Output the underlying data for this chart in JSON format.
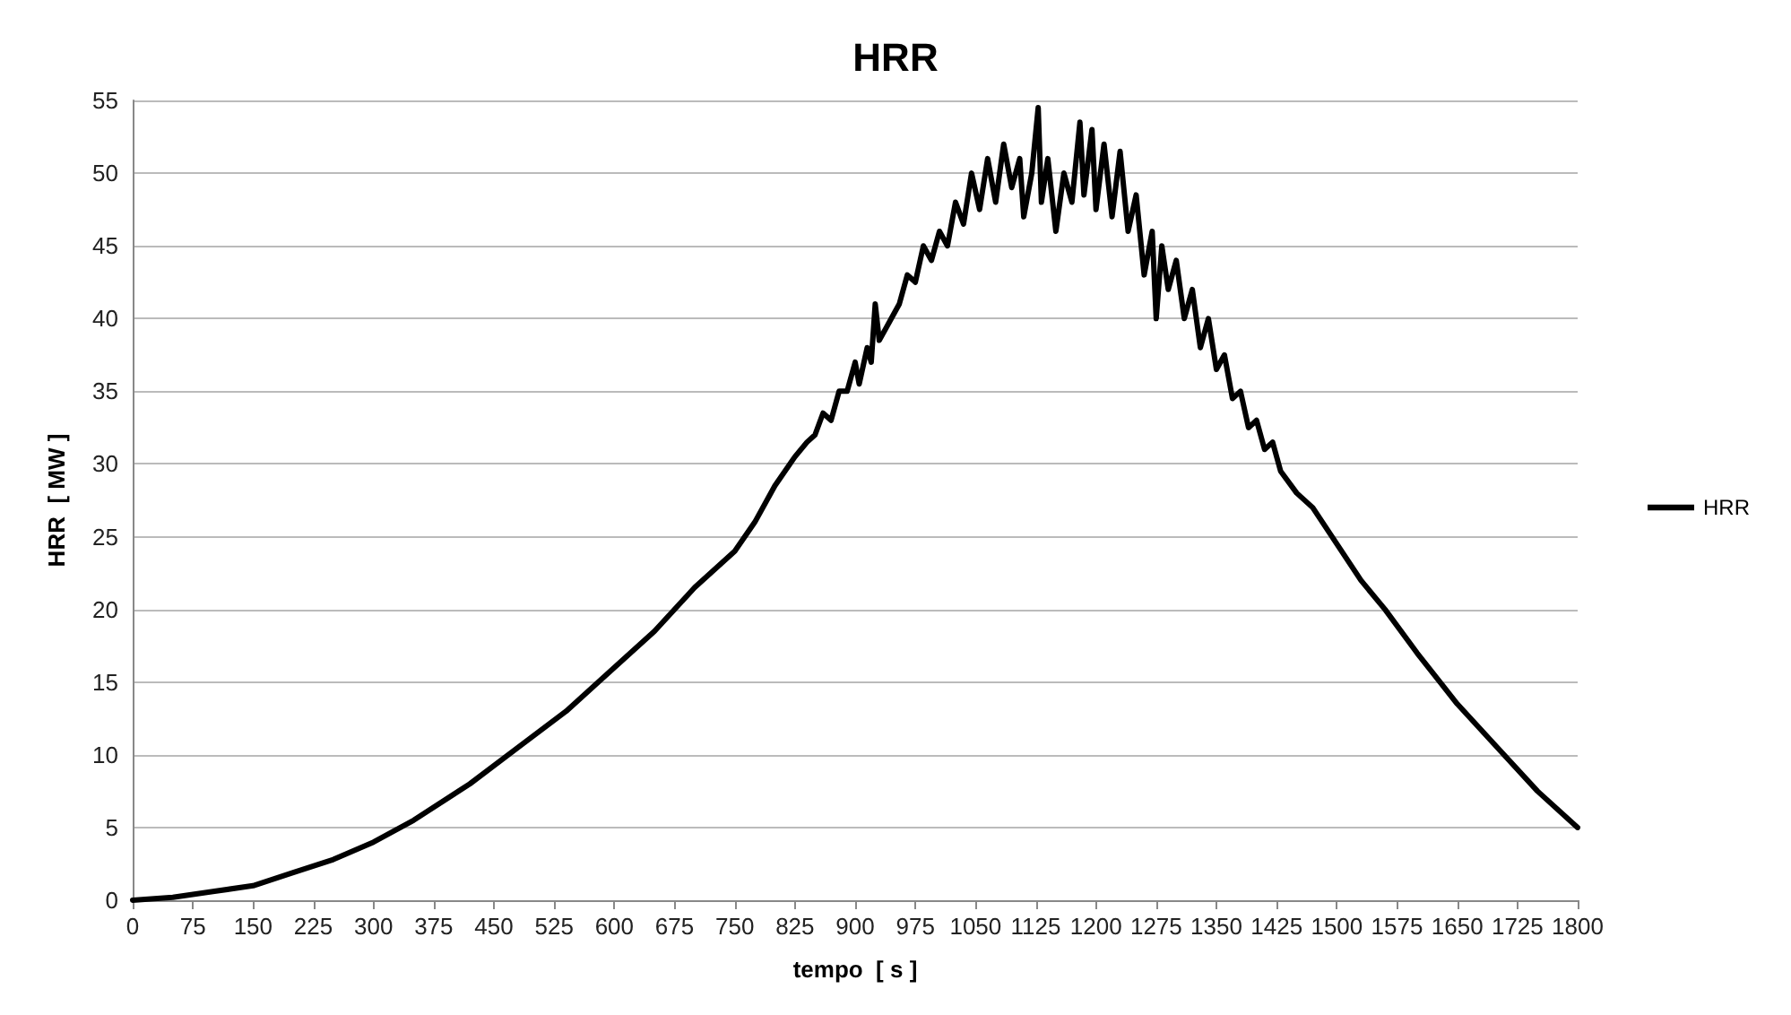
{
  "chart_data": {
    "type": "line",
    "title": "HRR",
    "xlabel": "tempo  [ s ]",
    "ylabel": "HRR  [ MW ]",
    "legend": "right",
    "grid": "y",
    "marker": "none",
    "line_style": "solid",
    "xlim": [
      0,
      1800
    ],
    "xticks": [
      0,
      75,
      150,
      225,
      300,
      375,
      450,
      525,
      600,
      675,
      750,
      825,
      900,
      975,
      1050,
      1125,
      1200,
      1275,
      1350,
      1425,
      1500,
      1575,
      1650,
      1725,
      1800
    ],
    "ylim": [
      0,
      55
    ],
    "yticks": [
      0,
      5,
      10,
      15,
      20,
      25,
      30,
      35,
      40,
      45,
      50,
      55
    ],
    "series": [
      {
        "name": "HRR",
        "color": "#000000",
        "x": [
          0,
          50,
          75,
          100,
          150,
          200,
          250,
          300,
          350,
          420,
          480,
          540,
          600,
          650,
          700,
          750,
          775,
          800,
          825,
          840,
          850,
          860,
          870,
          880,
          890,
          900,
          905,
          915,
          920,
          925,
          930,
          945,
          955,
          965,
          975,
          985,
          995,
          1005,
          1015,
          1025,
          1035,
          1045,
          1055,
          1065,
          1075,
          1085,
          1095,
          1105,
          1110,
          1120,
          1128,
          1132,
          1140,
          1150,
          1160,
          1170,
          1180,
          1185,
          1195,
          1200,
          1210,
          1220,
          1230,
          1240,
          1250,
          1260,
          1270,
          1275,
          1282,
          1290,
          1300,
          1310,
          1320,
          1330,
          1340,
          1350,
          1360,
          1370,
          1380,
          1390,
          1400,
          1410,
          1420,
          1430,
          1450,
          1470,
          1500,
          1530,
          1560,
          1600,
          1650,
          1700,
          1750,
          1800
        ],
        "values": [
          0,
          0.2,
          0.4,
          0.6,
          1,
          1.9,
          2.8,
          4,
          5.5,
          8,
          10.5,
          13,
          16,
          18.5,
          21.5,
          24,
          26,
          28.5,
          30.5,
          31.5,
          32,
          33.5,
          33,
          35,
          35,
          37,
          35.5,
          38,
          37,
          41,
          38.5,
          40,
          41,
          43,
          42.5,
          45,
          44,
          46,
          45,
          48,
          46.5,
          50,
          47.5,
          51,
          48,
          52,
          49,
          51,
          47,
          50,
          54.5,
          48,
          51,
          46,
          50,
          48,
          53.5,
          48.5,
          53,
          47.5,
          52,
          47,
          51.5,
          46,
          48.5,
          43,
          46,
          40,
          45,
          42,
          44,
          40,
          42,
          38,
          40,
          36.5,
          37.5,
          34.5,
          35,
          32.5,
          33,
          31,
          31.5,
          29.5,
          28,
          27,
          24.5,
          22,
          20,
          17,
          13.5,
          10.5,
          7.5,
          5
        ]
      }
    ]
  }
}
